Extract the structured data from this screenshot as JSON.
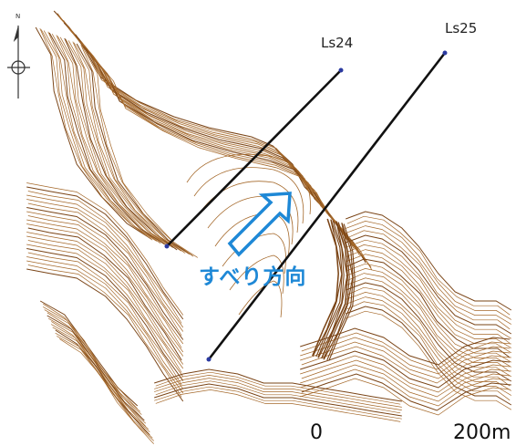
{
  "labels": {
    "line_a": "Ls24",
    "line_b": "Ls25",
    "direction": "すべり方向",
    "scale_start": "0",
    "scale_end": "200m",
    "north": "N"
  },
  "colors": {
    "contour": "#a5692b",
    "contour_dark": "#7a4416",
    "slide_arrow": "#1e88d6",
    "survey_line": "#111111",
    "survey_point": "#2b3aa0"
  },
  "icons": {
    "north": "north-arrow-icon",
    "direction": "hollow-arrow-icon"
  }
}
